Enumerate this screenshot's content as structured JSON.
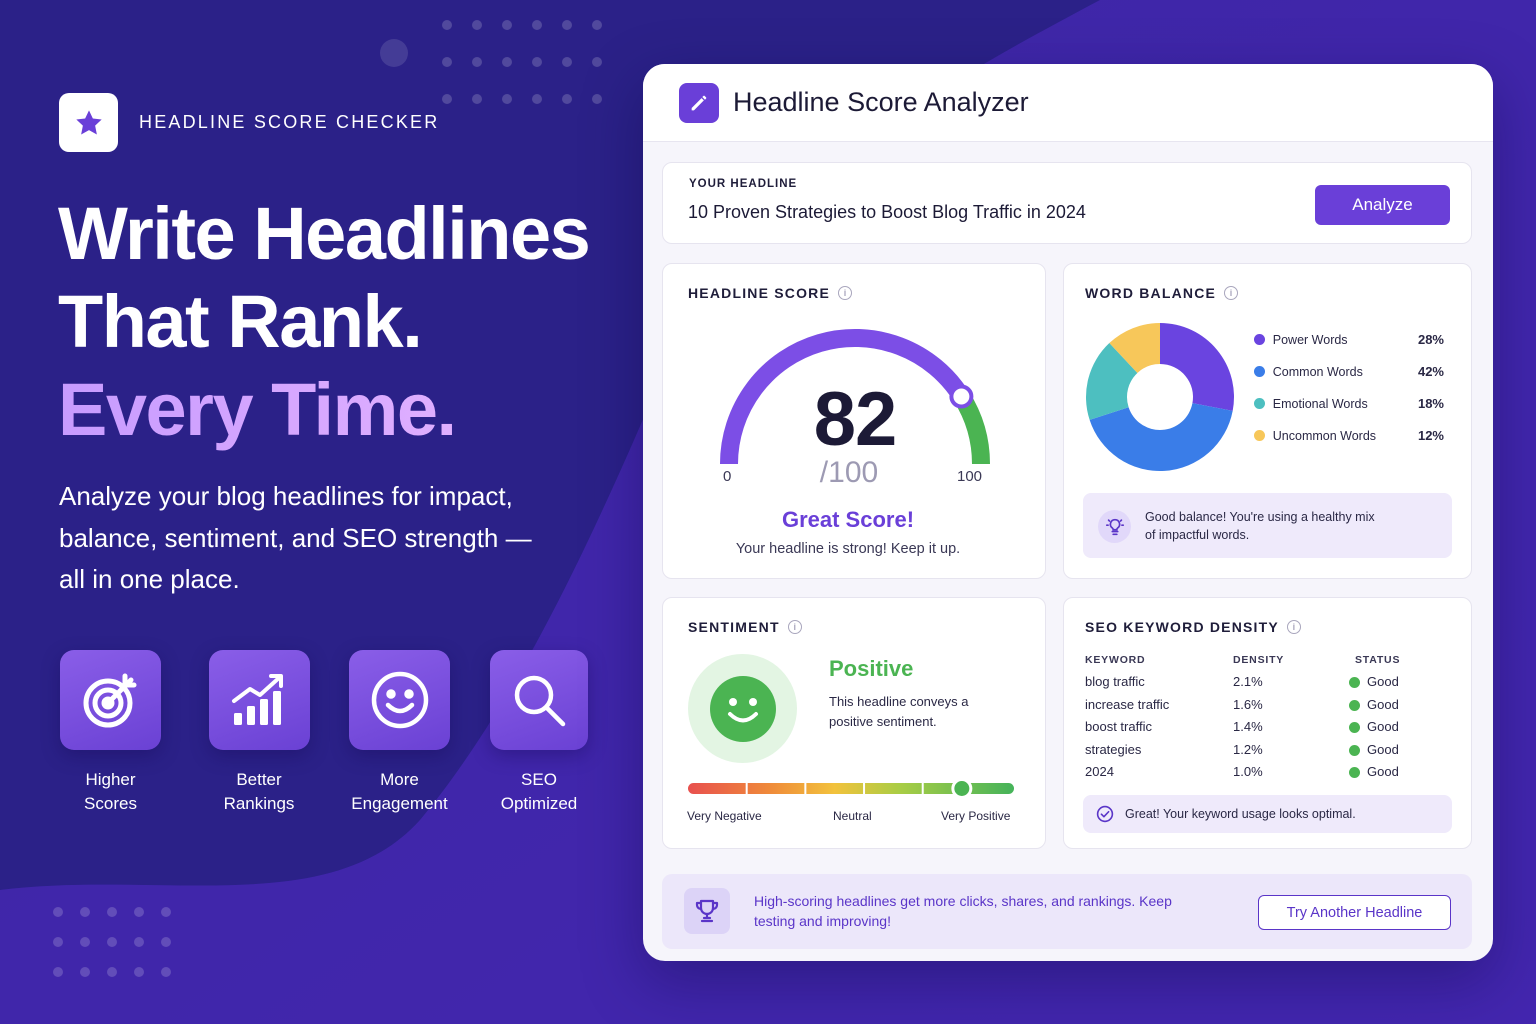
{
  "brand": {
    "name": "HEADLINE SCORE CHECKER",
    "icon": "star-icon"
  },
  "hero": {
    "line1": "Write Headlines",
    "line2": "That Rank.",
    "line3": "Every Time."
  },
  "subtitle": "Analyze your blog headlines for impact, balance, sentiment, and SEO strength — all in one place.",
  "features": [
    {
      "label": "Higher Scores",
      "icon": "target-icon"
    },
    {
      "label": "Better Rankings",
      "icon": "bar-chart-icon"
    },
    {
      "label": "More\nEngagement",
      "icon": "smiley-icon"
    },
    {
      "label": "SEO\nOptimized",
      "icon": "search-icon"
    }
  ],
  "analyzer": {
    "title": "Headline Score Analyzer",
    "icon": "pencil-icon",
    "input_label": "YOUR HEADLINE",
    "input_value": "10 Proven Strategies to Boost Blog Traffic in 2024",
    "analyze_label": "Analyze"
  },
  "score": {
    "label": "HEADLINE SCORE",
    "value": "82",
    "value_num": 82,
    "max_text": "/100",
    "min": "0",
    "max": "100",
    "rating": "Great Score!",
    "message": "Your headline is strong! Keep it up.",
    "colors": {
      "arc": "#7c4ee6",
      "end": "#4bb452",
      "track": "#ece9f6"
    }
  },
  "balance": {
    "label": "WORD BALANCE",
    "items": [
      {
        "name": "Power Words",
        "pct": "28%",
        "value": 28,
        "color": "#6a44e0"
      },
      {
        "name": "Common Words",
        "pct": "42%",
        "value": 42,
        "color": "#3a7de8"
      },
      {
        "name": "Emotional Words",
        "pct": "18%",
        "value": 18,
        "color": "#4dbfc0"
      },
      {
        "name": "Uncommon Words",
        "pct": "12%",
        "value": 12,
        "color": "#f7c75a"
      }
    ],
    "note": "Good balance! You're using a healthy mix of impactful words.",
    "note_icon": "lightbulb-icon"
  },
  "sentiment": {
    "label": "SENTIMENT",
    "title": "Positive",
    "description": "This headline conveys a positive sentiment.",
    "scale_left": "Very Negative",
    "scale_mid": "Neutral",
    "scale_right": "Very Positive",
    "level": 0.84
  },
  "seo": {
    "label": "SEO KEYWORD DENSITY",
    "headers": {
      "keyword": "KEYWORD",
      "density": "DENSITY",
      "status": "STATUS"
    },
    "rows": [
      {
        "keyword": "blog traffic",
        "density": "2.1%",
        "status": "Good"
      },
      {
        "keyword": "increase traffic",
        "density": "1.6%",
        "status": "Good"
      },
      {
        "keyword": "boost traffic",
        "density": "1.4%",
        "status": "Good"
      },
      {
        "keyword": "strategies",
        "density": "1.2%",
        "status": "Good"
      },
      {
        "keyword": "2024",
        "density": "1.0%",
        "status": "Good"
      }
    ],
    "note": "Great! Your keyword usage looks optimal.",
    "note_icon": "check-circle-icon"
  },
  "footer": {
    "text": "High-scoring headlines get more clicks, shares, and rankings. Keep testing and improving!",
    "button": "Try Another Headline",
    "icon": "trophy-icon"
  },
  "colors": {
    "background": "#2a1f86",
    "accent": "#6a3fd8",
    "positive": "#4bb452"
  }
}
